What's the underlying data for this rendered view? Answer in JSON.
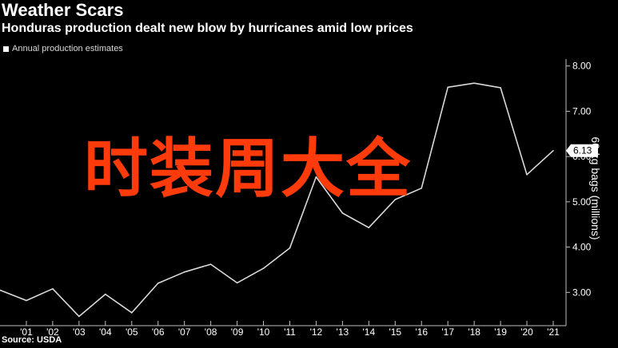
{
  "chart_data": {
    "type": "line",
    "title": "Weather Scars",
    "subtitle": "Honduras production dealt new blow by hurricanes amid low prices",
    "legend": [
      "Annual production estimates"
    ],
    "legend_position": "top-left",
    "ylabel": "60-kg bags (millions)",
    "x_tick_labels": [
      "'01",
      "'02",
      "'03",
      "'04",
      "'05",
      "'06",
      "'07",
      "'08",
      "'09",
      "'10",
      "'11",
      "'12",
      "'13",
      "'14",
      "'15",
      "'16",
      "'17",
      "'18",
      "'19",
      "'20",
      "'21"
    ],
    "y_ticks": [
      "3.00",
      "4.00",
      "5.00",
      "6.00",
      "7.00",
      "8.00"
    ],
    "ylim": [
      2.3,
      8.1
    ],
    "series": [
      {
        "name": "Annual production estimates",
        "x": [
          2000,
          2001,
          2002,
          2003,
          2004,
          2005,
          2006,
          2007,
          2008,
          2009,
          2010,
          2011,
          2012,
          2013,
          2014,
          2015,
          2016,
          2017,
          2018,
          2019,
          2020,
          2021
        ],
        "values": [
          3.05,
          2.82,
          3.08,
          2.47,
          2.96,
          2.55,
          3.2,
          3.45,
          3.62,
          3.21,
          3.53,
          3.98,
          5.55,
          4.75,
          4.43,
          5.05,
          5.3,
          7.53,
          7.62,
          7.52,
          5.6,
          6.13
        ]
      }
    ],
    "last_value_label": "6.13",
    "grid": false,
    "source": "Source: USDA",
    "overlay_text": "时装周大全",
    "colors": {
      "background": "#000000",
      "line": "#d9d9d9",
      "overlay": "#ff3b0b"
    }
  }
}
